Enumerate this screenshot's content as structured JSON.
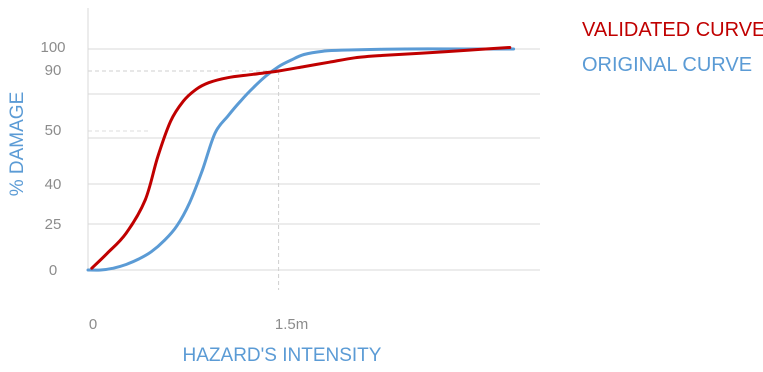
{
  "chart_data": {
    "type": "line",
    "xlabel": "HAZARD'S INTENSITY",
    "ylabel": "% DAMAGE",
    "x_ticks": [
      {
        "value": 0,
        "label": "0"
      },
      {
        "value": 1.5,
        "label": "1.5m"
      }
    ],
    "y_ticks": [
      {
        "value": 0,
        "label": "0"
      },
      {
        "value": 25,
        "label": "25"
      },
      {
        "value": 40,
        "label": "40"
      },
      {
        "value": 50,
        "label": "50"
      },
      {
        "value": 90,
        "label": "90"
      },
      {
        "value": 100,
        "label": "100"
      }
    ],
    "grid_values": [
      0,
      30,
      60,
      80,
      100
    ],
    "xlim": [
      0,
      3.4
    ],
    "legend_position": "top-right",
    "series": [
      {
        "name": "VALIDATED CURVE",
        "color": "#c00000",
        "points": [
          [
            0.03,
            1
          ],
          [
            0.15,
            9
          ],
          [
            0.3,
            20
          ],
          [
            0.45,
            34
          ],
          [
            0.55,
            46
          ],
          [
            0.65,
            60
          ],
          [
            0.75,
            72
          ],
          [
            0.85,
            79
          ],
          [
            0.95,
            83
          ],
          [
            1.1,
            86
          ],
          [
            1.3,
            88
          ],
          [
            1.5,
            90
          ],
          [
            1.7,
            92
          ],
          [
            1.9,
            94
          ],
          [
            2.1,
            96
          ],
          [
            2.3,
            97
          ],
          [
            2.6,
            98
          ],
          [
            3.0,
            99.5
          ],
          [
            3.32,
            101
          ]
        ]
      },
      {
        "name": "ORIGINAL CURVE",
        "color": "#5b9bd5",
        "points": [
          [
            0,
            0
          ],
          [
            0.1,
            0
          ],
          [
            0.2,
            1
          ],
          [
            0.3,
            3
          ],
          [
            0.4,
            6
          ],
          [
            0.5,
            10
          ],
          [
            0.6,
            16
          ],
          [
            0.7,
            24
          ],
          [
            0.8,
            33
          ],
          [
            0.9,
            43
          ],
          [
            1.0,
            53
          ],
          [
            1.1,
            63
          ],
          [
            1.2,
            72
          ],
          [
            1.3,
            80
          ],
          [
            1.4,
            87
          ],
          [
            1.5,
            92
          ],
          [
            1.6,
            95
          ],
          [
            1.7,
            97.5
          ],
          [
            1.85,
            99
          ],
          [
            2.0,
            99.5
          ],
          [
            2.5,
            100
          ],
          [
            3.0,
            100
          ],
          [
            3.35,
            100
          ]
        ]
      }
    ],
    "reference_lines": [
      {
        "x": 1.5,
        "y": 90
      },
      {
        "x": 0.7,
        "y": 60
      }
    ]
  }
}
